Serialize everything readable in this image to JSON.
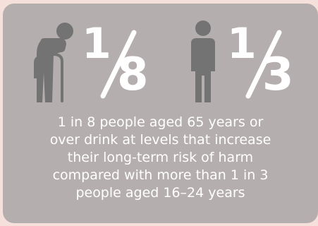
{
  "stat_older": {
    "numerator": "1",
    "denominator": "8"
  },
  "stat_younger": {
    "numerator": "1",
    "denominator": "3"
  },
  "caption": {
    "lines": [
      "1 in 8 people aged 65 years or",
      "over drink at levels that increase",
      "their long-term risk of harm",
      "compared with more than 1 in 3",
      "people aged 16–24 years"
    ]
  },
  "colors": {
    "background": "#f6e0dc",
    "card": "#b5aeae",
    "icon": "#737373",
    "text": "#ffffff"
  },
  "icons": [
    "elderly-person-with-cane-icon",
    "standing-person-icon"
  ]
}
